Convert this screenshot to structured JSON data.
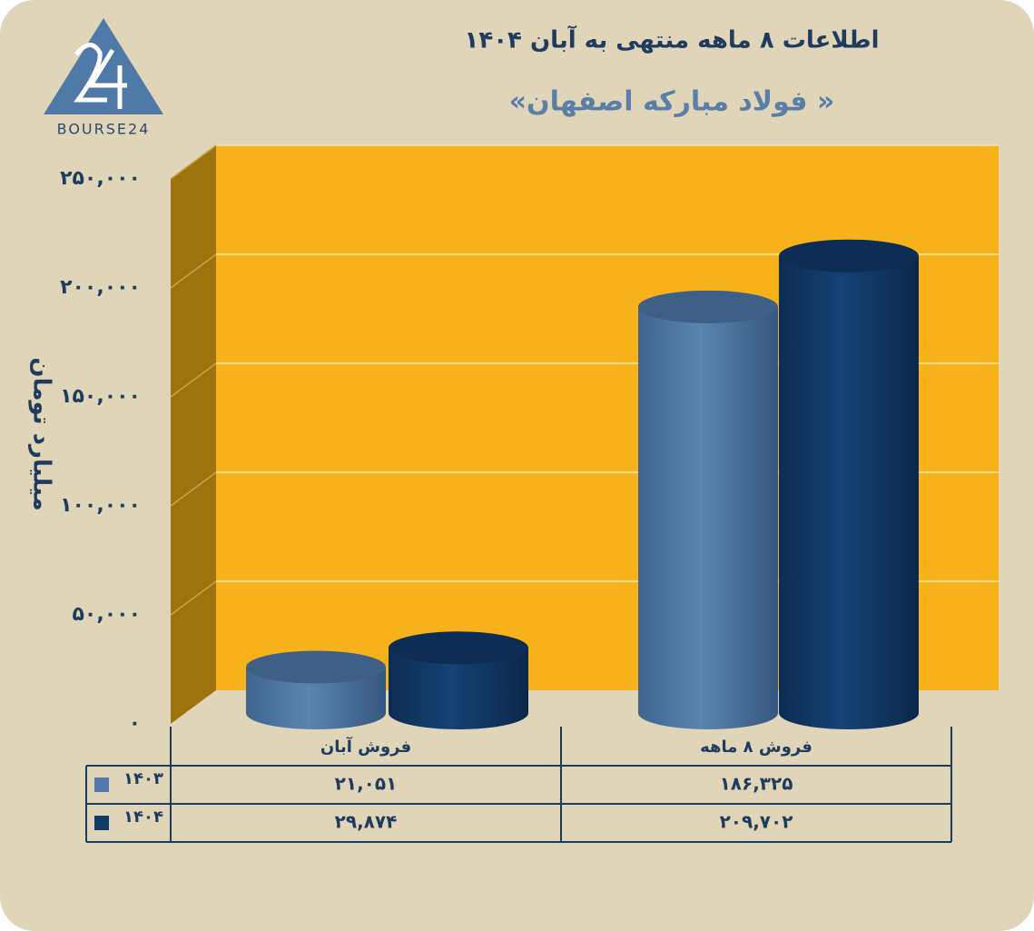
{
  "logo_text": "BOURSE24",
  "chart_data": {
    "type": "bar",
    "title": "اطلاعات ۸ ماهه منتهی به آبان ۱۴۰۴",
    "subtitle": "«فولاد مبارکه اصفهان »",
    "y_label": "میلیارد تومان",
    "categories": [
      "فروش آبان",
      "فروش ۸ ماهه"
    ],
    "series": [
      {
        "name": "۱۴۰۳",
        "color": "#5079a6",
        "values": [
          21051,
          186325
        ],
        "value_labels": [
          "۲۱,۰۵۱",
          "۱۸۶,۳۲۵"
        ]
      },
      {
        "name": "۱۴۰۴",
        "color": "#123a66",
        "values": [
          29874,
          209702
        ],
        "value_labels": [
          "۲۹,۸۷۴",
          "۲۰۹,۷۰۲"
        ]
      }
    ],
    "ylim": [
      0,
      250000
    ],
    "yticks": [
      {
        "value": 0,
        "label": "۰"
      },
      {
        "value": 50000,
        "label": "۵۰,۰۰۰"
      },
      {
        "value": 100000,
        "label": "۱۰۰,۰۰۰"
      },
      {
        "value": 150000,
        "label": "۱۵۰,۰۰۰"
      },
      {
        "value": 200000,
        "label": "۲۰۰,۰۰۰"
      },
      {
        "value": 250000,
        "label": "۲۵۰,۰۰۰"
      }
    ],
    "grid": true
  }
}
